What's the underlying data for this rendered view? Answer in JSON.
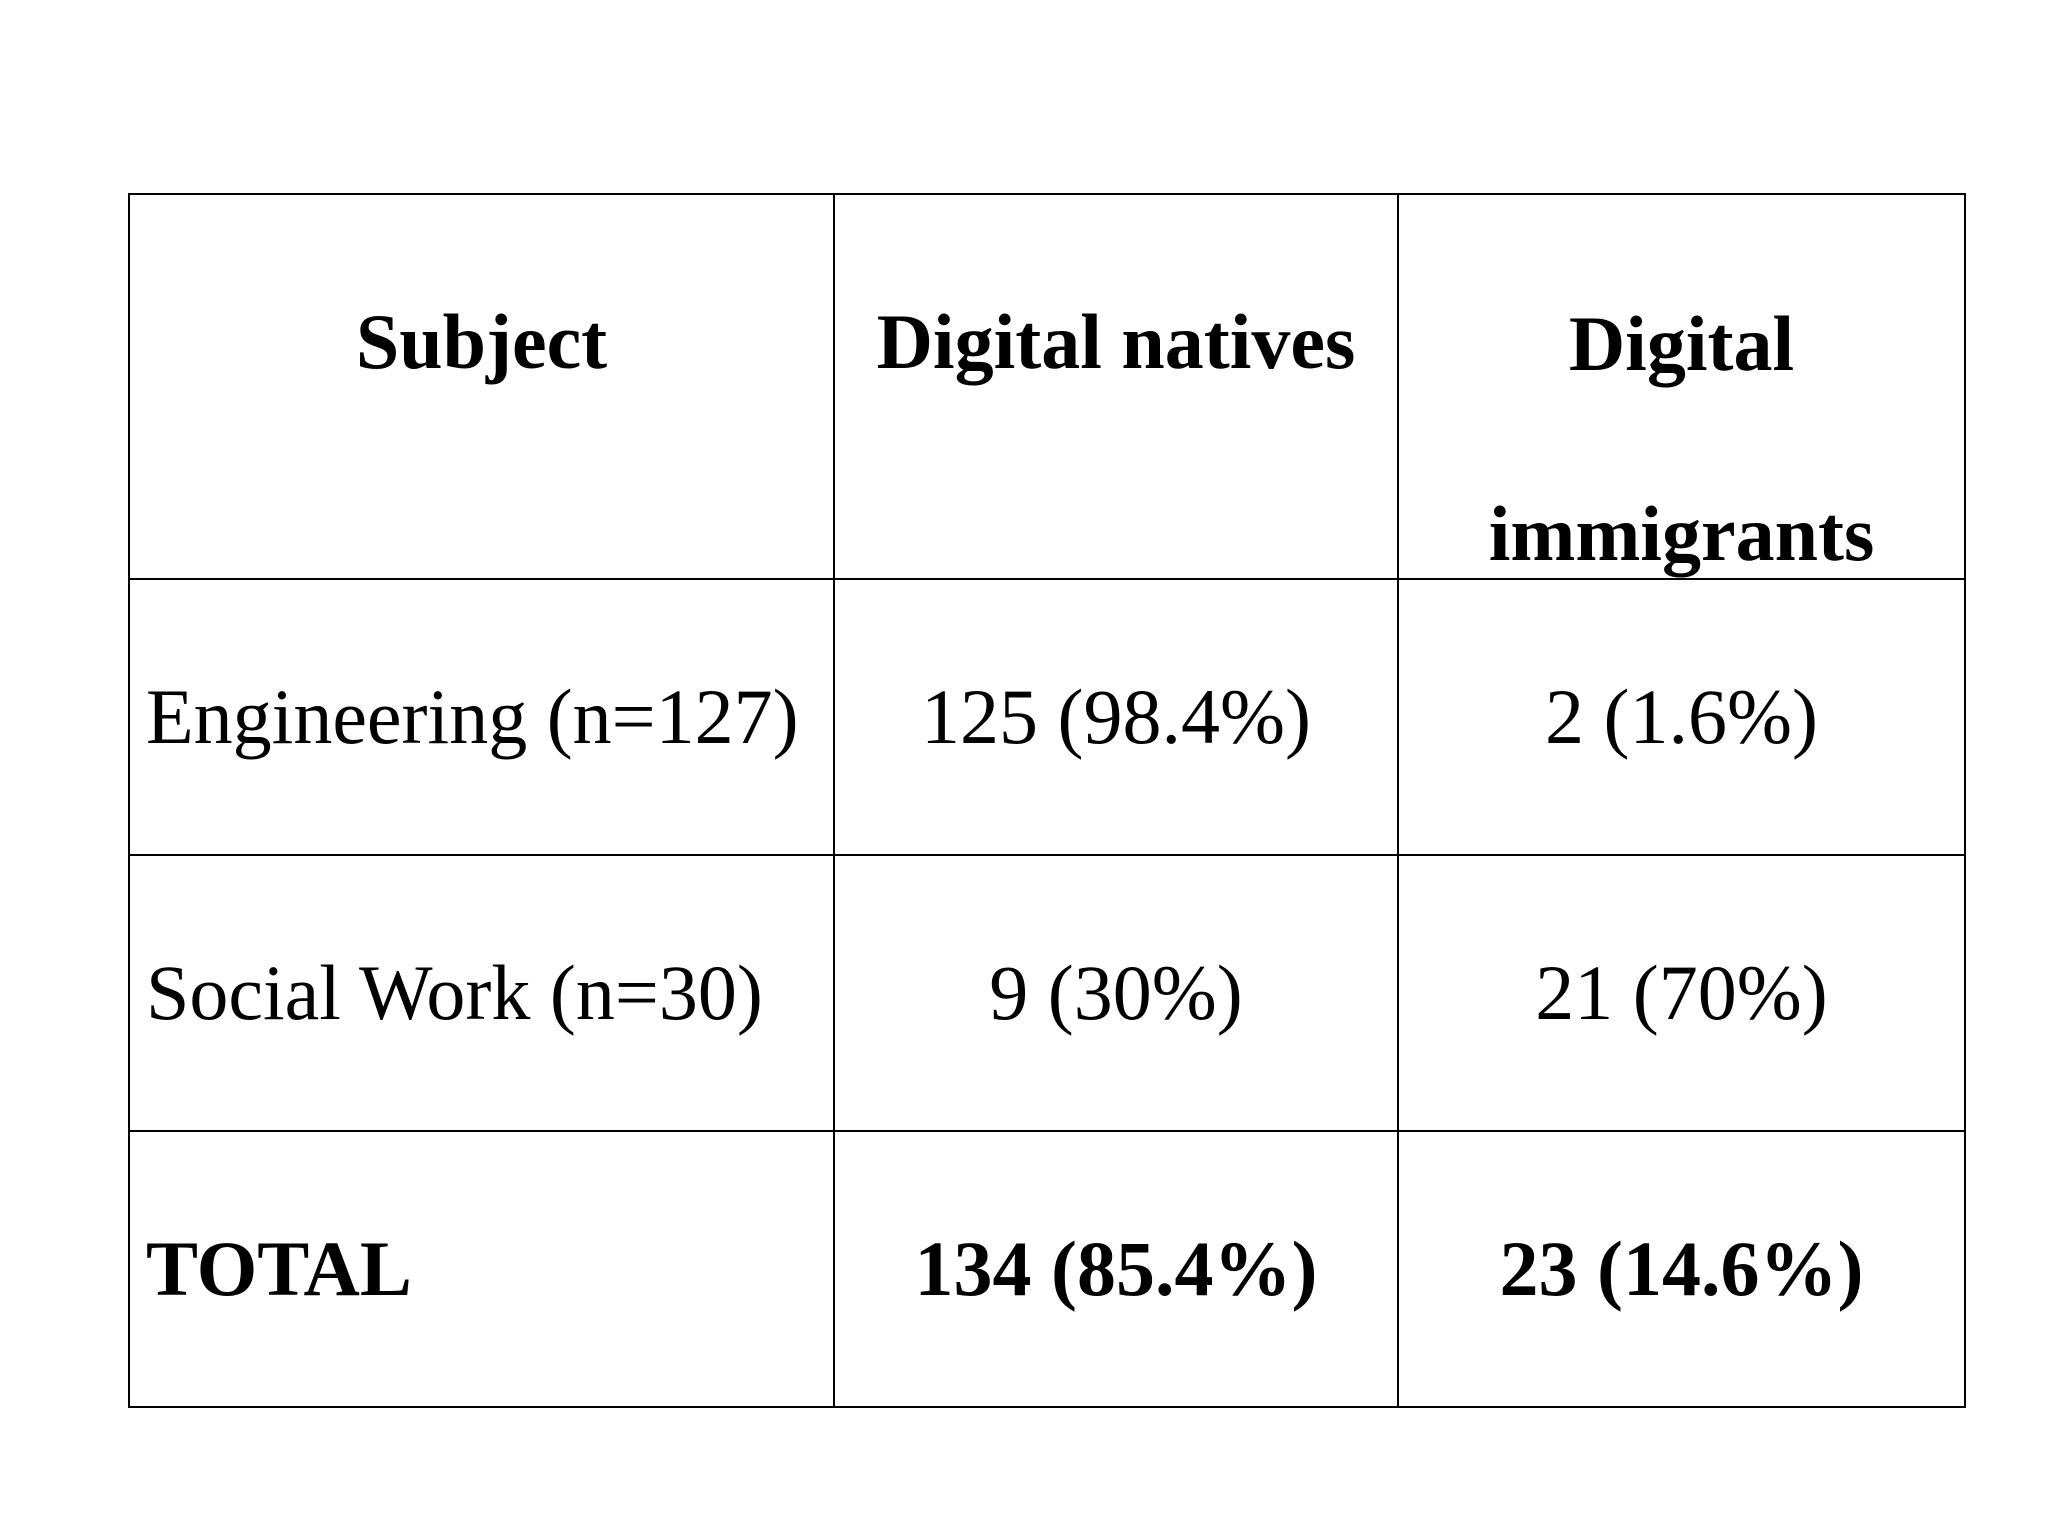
{
  "table": {
    "headers": {
      "subject": "Subject",
      "natives": "Digital natives",
      "immigrants_line1": "Digital",
      "immigrants_line2": "immigrants"
    },
    "rows": [
      {
        "subject": "Engineering (n=127)",
        "natives": "125 (98.4%)",
        "immigrants": "2 (1.6%)"
      },
      {
        "subject": "Social Work (n=30)",
        "natives": "9 (30%)",
        "immigrants": "21 (70%)"
      }
    ],
    "total": {
      "label": "TOTAL",
      "natives": "134 (85.4%)",
      "immigrants": "23 (14.6%)"
    }
  }
}
